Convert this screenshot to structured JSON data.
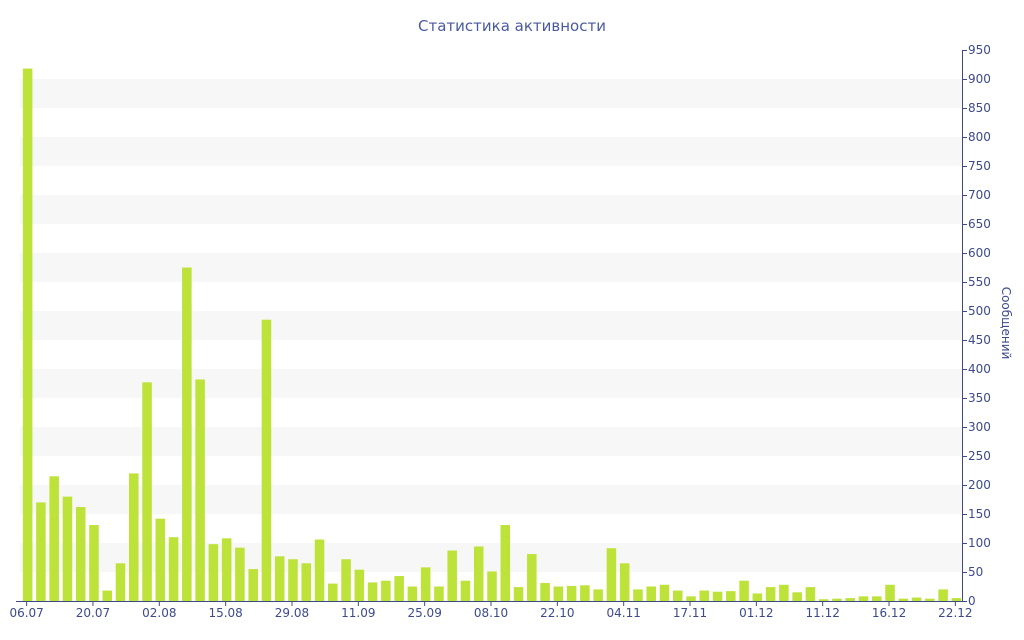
{
  "chart_data": {
    "type": "bar",
    "title": "Статистика активности",
    "ylabel": "Сообщений",
    "xlabel": "",
    "ylim": [
      0,
      950
    ],
    "y_ticks": [
      0,
      50,
      100,
      150,
      200,
      250,
      300,
      350,
      400,
      450,
      500,
      550,
      600,
      650,
      700,
      750,
      800,
      850,
      900,
      950
    ],
    "x_tick_labels": [
      {
        "index": 0,
        "label": "06.07"
      },
      {
        "index": 5,
        "label": "20.07"
      },
      {
        "index": 10,
        "label": "02.08"
      },
      {
        "index": 15,
        "label": "15.08"
      },
      {
        "index": 20,
        "label": "29.08"
      },
      {
        "index": 25,
        "label": "11.09"
      },
      {
        "index": 30,
        "label": "25.09"
      },
      {
        "index": 35,
        "label": "08.10"
      },
      {
        "index": 40,
        "label": "22.10"
      },
      {
        "index": 45,
        "label": "04.11"
      },
      {
        "index": 50,
        "label": "17.11"
      },
      {
        "index": 55,
        "label": "01.12"
      },
      {
        "index": 60,
        "label": "11.12"
      },
      {
        "index": 65,
        "label": "16.12"
      },
      {
        "index": 70,
        "label": "22.12"
      }
    ],
    "values": [
      918,
      170,
      215,
      180,
      162,
      131,
      18,
      65,
      220,
      377,
      142,
      110,
      575,
      382,
      98,
      108,
      92,
      55,
      485,
      77,
      72,
      65,
      106,
      30,
      72,
      54,
      32,
      35,
      43,
      25,
      58,
      25,
      87,
      35,
      94,
      51,
      131,
      24,
      81,
      31,
      25,
      26,
      27,
      20,
      91,
      65,
      20,
      25,
      28,
      18,
      8,
      18,
      16,
      17,
      35,
      13,
      24,
      28,
      15,
      24,
      3,
      4,
      5,
      8,
      8,
      28,
      4,
      6,
      4,
      20,
      5
    ],
    "grid": true,
    "colors": {
      "bar": "#bde33a",
      "band": "#f7f7f7",
      "axis": "#3d4a8a",
      "title": "#4a5aa0"
    }
  }
}
